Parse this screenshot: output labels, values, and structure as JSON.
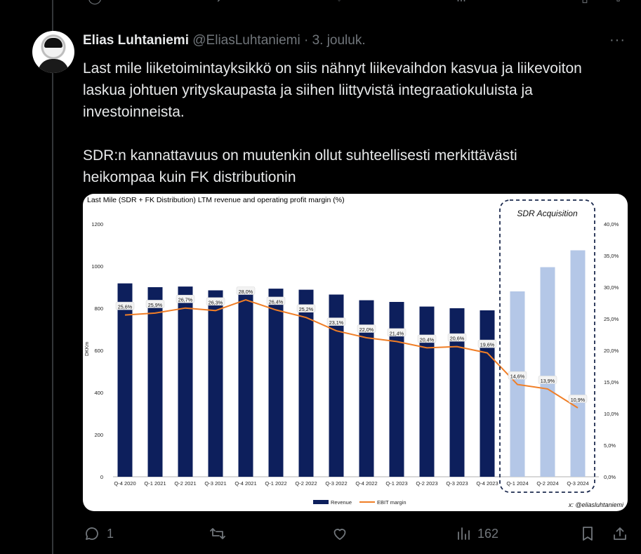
{
  "tweet": {
    "author_name": "Elias Luhtaniemi",
    "handle": "@EliasLuhtaniemi",
    "separator": "·",
    "date": "3. jouluk.",
    "more_label": "···",
    "text": "Last mile liiketoimintayksikkö on siis nähnyt liikevaihdon kasvua ja liikevoiton laskua johtuen yrityskaupasta ja siihen liittyvistä integraatiokuluista ja investoinneista.\n\nSDR:n kannattavuus on muutenkin ollut suhteellisesti merkittävästi heikompaa kuin FK distributionin",
    "stats": {
      "replies": "1",
      "views": "162"
    }
  },
  "icons": {
    "reply": "reply-icon",
    "repost": "repost-icon",
    "like": "heart-icon",
    "views": "views-icon",
    "bookmark": "bookmark-icon",
    "share": "share-icon",
    "more": "more-icon"
  },
  "chart_data": {
    "type": "bar",
    "title": "Last Mile (SDR + FK Distribution) LTM revenue and operating profit margin (%)",
    "ylabel": "DKKm",
    "ylim": [
      0,
      1200
    ],
    "yticks": [
      "1200",
      "1000",
      "800",
      "600",
      "400",
      "200",
      "0"
    ],
    "y2lim": [
      0,
      40
    ],
    "y2ticks": [
      "40,0%",
      "35,0%",
      "30,0%",
      "25,0%",
      "20,0%",
      "15,0%",
      "10,0%",
      "5,0%",
      "0,0%"
    ],
    "categories": [
      "Q-4 2020",
      "Q-1 2021",
      "Q-2 2021",
      "Q-3 2021",
      "Q-4 2021",
      "Q-1 2022",
      "Q-2 2022",
      "Q-3 2022",
      "Q-4 2022",
      "Q-1 2023",
      "Q-2 2023",
      "Q-3 2023",
      "Q-4 2023",
      "Q-1 2024",
      "Q-2 2024",
      "Q-3 2024"
    ],
    "series": [
      {
        "name": "Revenue",
        "type": "bar",
        "color": "#0d1f5c",
        "acquisition_color": "#b4c7e7",
        "values": [
          918,
          900,
          903,
          885,
          880,
          893,
          888,
          865,
          838,
          830,
          808,
          800,
          790,
          880,
          995,
          1075
        ]
      },
      {
        "name": "EBIT margin",
        "type": "line",
        "color": "#f07e26",
        "values": [
          25.6,
          25.9,
          26.7,
          26.3,
          28.0,
          26.4,
          25.2,
          23.1,
          22.0,
          21.4,
          20.4,
          20.6,
          19.6,
          14.6,
          13.9,
          10.9
        ],
        "labels": [
          "25,6%",
          "25,9%",
          "26,7%",
          "26,3%",
          "28,0%",
          "26,4%",
          "25,2%",
          "23,1%",
          "22,0%",
          "21,4%",
          "20,4%",
          "20,6%",
          "19,6%",
          "14,6%",
          "13,9%",
          "10,9%"
        ]
      }
    ],
    "acquisition_start_index": 13,
    "annotation": "SDR Acquisition",
    "legend": [
      "Revenue",
      "EBIT margin"
    ],
    "legend_position": "bottom",
    "credit": "x: @eliasluhtaniemi",
    "grid": false
  }
}
